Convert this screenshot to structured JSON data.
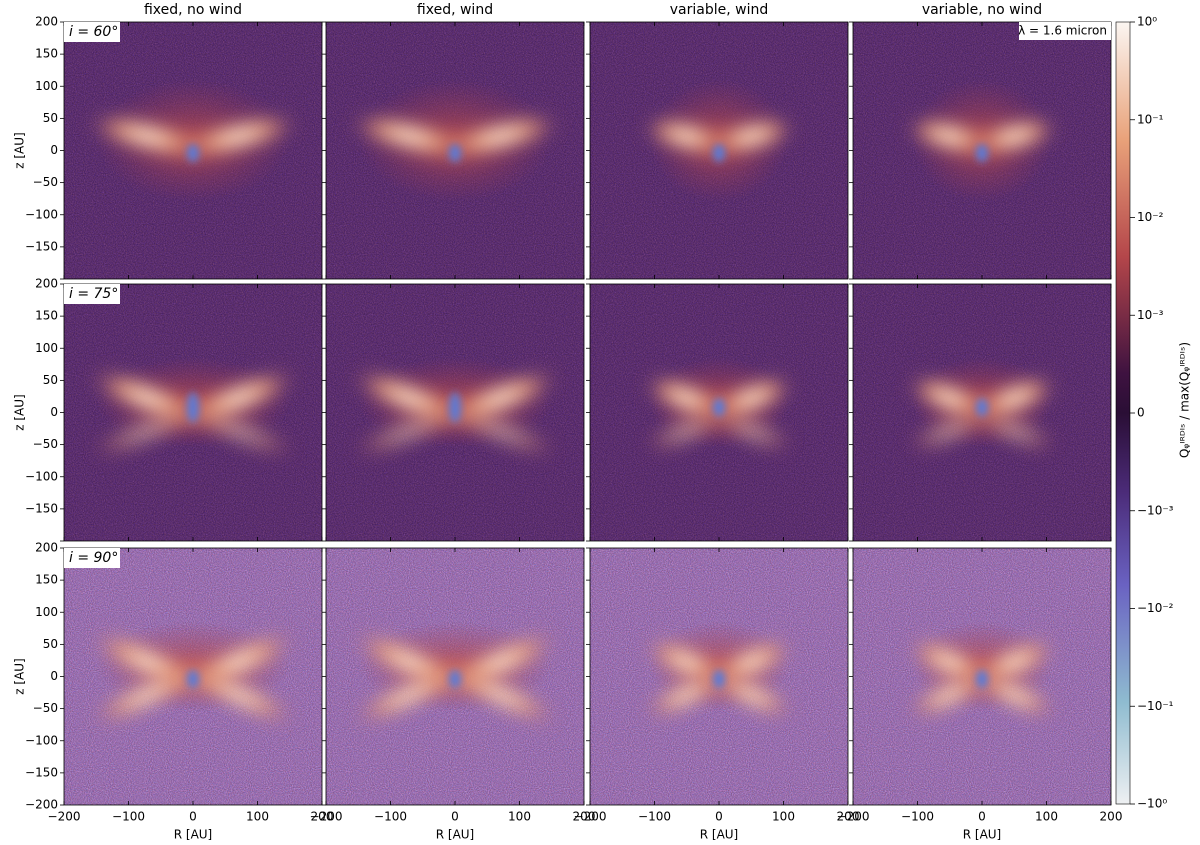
{
  "chart_data": {
    "type": "image-grid",
    "columns": [
      "fixed, no wind",
      "fixed, wind",
      "variable, wind",
      "variable, no wind"
    ],
    "rows": [
      "i = 60°",
      "i = 75°",
      "i = 90°"
    ],
    "annotation": "λ = 1.6 micron",
    "xlabel": "R [AU]",
    "ylabel": "z [AU]",
    "xlim": [
      -200,
      200
    ],
    "ylim": [
      -200,
      200
    ],
    "xticks": [
      {
        "value": -200,
        "label": "−200"
      },
      {
        "value": -100,
        "label": "−100"
      },
      0,
      100,
      200
    ],
    "yticks": [
      {
        "value": -200,
        "label": "−200"
      },
      {
        "value": -150,
        "label": "−150"
      },
      {
        "value": -100,
        "label": "−100"
      },
      {
        "value": -50,
        "label": "−50"
      },
      0,
      50,
      100,
      150,
      200
    ],
    "colorbar": {
      "label": "Qᵩᴵᴿᴰᴵˢ / max(Qᵩᴵᴿᴰᴵˢ)",
      "scale": "symlog",
      "linthresh": 0.001,
      "lim": [
        -1,
        1
      ],
      "ticks": [
        {
          "value": 1,
          "label": "10⁰"
        },
        {
          "value": 0.1,
          "label": "10⁻¹"
        },
        {
          "value": 0.01,
          "label": "10⁻²"
        },
        {
          "value": 0.001,
          "label": "10⁻³"
        },
        0,
        {
          "value": -0.001,
          "label": "−10⁻³"
        },
        {
          "value": -0.01,
          "label": "−10⁻²"
        },
        {
          "value": -0.1,
          "label": "−10⁻¹"
        },
        {
          "value": -1,
          "label": "−10⁰"
        }
      ]
    }
  }
}
